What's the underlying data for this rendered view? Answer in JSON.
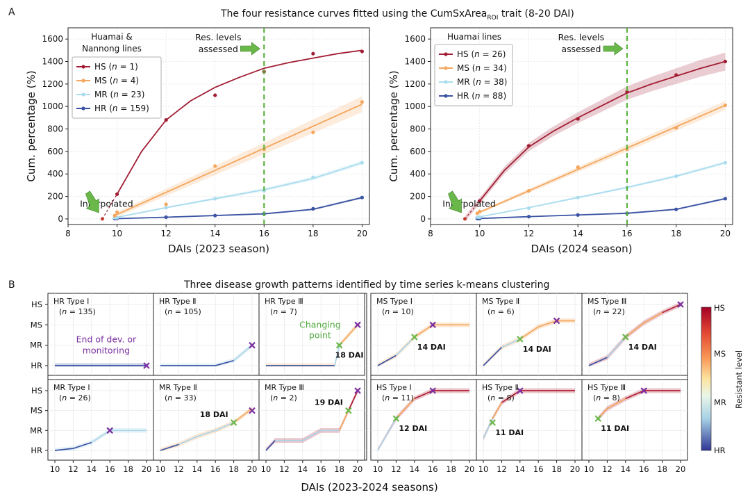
{
  "panel_a": {
    "letter": "A",
    "title": "The four resistance curves fitted using the CumSxArea",
    "title_sub": "ROI",
    "title_tail": " trait (8-20 DAI)",
    "ylabel": "Cum. percentage (%)",
    "annotation_res": "Res. levels",
    "annotation_res2": "assessed",
    "annotation_interp": "Interpolated"
  },
  "panel_b": {
    "letter": "B",
    "title": "Three disease growth patterns identified by time series k-means clustering",
    "xlabel": "DAIs (2023-2024 seasons)",
    "level_labels": [
      "HS",
      "MS",
      "MR",
      "HR"
    ],
    "colorbar_label": "Resistant level",
    "colorbar_ticks": [
      "HS",
      "MS",
      "MR",
      "HR"
    ],
    "end_label_1": "End of dev. or",
    "end_label_2": "monitoring",
    "changing_label_1": "Changing",
    "changing_label_2": "point"
  },
  "colors": {
    "HS": "#a11d33",
    "MS": "#f4a65c",
    "MR": "#a9dcee",
    "HR": "#3a53a4",
    "vline": "#5db33f",
    "arrow": "#6ab84a",
    "end_marker": "#7b2fa0",
    "change_marker": "#6ab84a",
    "end_text": "#7b2fa0",
    "change_text": "#4fa83d"
  },
  "chart_data": [
    {
      "type": "line",
      "title": "The four resistance curves fitted using the CumSxAreaROI trait (8-20 DAI)",
      "xlabel": "DAIs (2023 season)",
      "ylabel": "Cum. percentage (%)",
      "xlim": [
        8,
        20.3
      ],
      "ylim": [
        -50,
        1700
      ],
      "xticks": [
        8,
        10,
        12,
        14,
        16,
        18,
        20
      ],
      "yticks": [
        0,
        200,
        400,
        600,
        800,
        1000,
        1200,
        1400,
        1600
      ],
      "vline_x": 16,
      "legend_title_1": "Huamai  &",
      "legend_title_2": "Nannong lines",
      "series": [
        {
          "name": "HS",
          "n": "1",
          "fit_x": [
            9.4,
            10,
            11,
            12,
            13,
            14,
            15,
            16,
            17,
            18,
            19,
            20
          ],
          "fit_y": [
            0,
            220,
            600,
            880,
            1050,
            1170,
            1260,
            1340,
            1390,
            1430,
            1470,
            1500
          ],
          "points_x": [
            10,
            12,
            14,
            16,
            18,
            20
          ],
          "points_y": [
            220,
            880,
            1100,
            1310,
            1470,
            1490
          ],
          "band": 0
        },
        {
          "name": "MS",
          "n": "4",
          "fit_x": [
            9.9,
            20
          ],
          "fit_y": [
            30,
            1020
          ],
          "points_x": [
            10,
            12,
            14,
            16,
            18,
            20
          ],
          "points_y": [
            60,
            130,
            470,
            620,
            770,
            1040
          ],
          "band": 70
        },
        {
          "name": "MR",
          "n": "23",
          "fit_x": [
            9.9,
            12,
            14,
            16,
            18,
            20
          ],
          "fit_y": [
            10,
            100,
            180,
            260,
            360,
            500
          ],
          "points_x": [
            10,
            12,
            14,
            16,
            18,
            20
          ],
          "points_y": [
            10,
            100,
            180,
            250,
            370,
            500
          ],
          "band": 20
        },
        {
          "name": "HR",
          "n": "159",
          "fit_x": [
            9.9,
            12,
            14,
            16,
            18,
            20
          ],
          "fit_y": [
            2,
            15,
            30,
            45,
            85,
            190
          ],
          "points_x": [
            10,
            12,
            14,
            16,
            18,
            20
          ],
          "points_y": [
            3,
            15,
            30,
            45,
            90,
            190
          ],
          "band": 10
        }
      ]
    },
    {
      "type": "line",
      "xlabel": "DAIs (2024 season)",
      "ylabel": "Cum. percentage (%)",
      "xlim": [
        8,
        20.3
      ],
      "ylim": [
        -50,
        1700
      ],
      "xticks": [
        8,
        10,
        12,
        14,
        16,
        18,
        20
      ],
      "yticks": [
        0,
        200,
        400,
        600,
        800,
        1000,
        1200,
        1400,
        1600
      ],
      "vline_x": 16,
      "legend_title_1": "Huamai  lines",
      "legend_title_2": "",
      "series": [
        {
          "name": "HS",
          "n": "26",
          "fit_x": [
            9.4,
            10,
            11,
            12,
            13,
            14,
            15,
            16,
            17,
            18,
            19,
            20
          ],
          "fit_y": [
            0,
            160,
            430,
            640,
            780,
            900,
            1010,
            1120,
            1200,
            1270,
            1340,
            1400
          ],
          "points_x": [
            10,
            12,
            14,
            16,
            18,
            20
          ],
          "points_y": [
            160,
            650,
            890,
            1130,
            1280,
            1400
          ],
          "band": 80
        },
        {
          "name": "MS",
          "n": "34",
          "fit_x": [
            9.9,
            20
          ],
          "fit_y": [
            50,
            1010
          ],
          "points_x": [
            10,
            12,
            14,
            16,
            18,
            20
          ],
          "points_y": [
            65,
            250,
            460,
            620,
            810,
            1010
          ],
          "band": 40
        },
        {
          "name": "MR",
          "n": "38",
          "fit_x": [
            9.9,
            12,
            14,
            16,
            18,
            20
          ],
          "fit_y": [
            15,
            100,
            190,
            280,
            380,
            500
          ],
          "points_x": [
            10,
            12,
            14,
            16,
            18,
            20
          ],
          "points_y": [
            15,
            95,
            190,
            280,
            380,
            500
          ],
          "band": 15
        },
        {
          "name": "HR",
          "n": "88",
          "fit_x": [
            9.9,
            12,
            14,
            16,
            18,
            20
          ],
          "fit_y": [
            3,
            20,
            35,
            50,
            85,
            180
          ],
          "points_x": [
            10,
            12,
            14,
            16,
            18,
            20
          ],
          "points_y": [
            3,
            20,
            35,
            50,
            85,
            180
          ],
          "band": 10
        }
      ]
    },
    {
      "type": "line",
      "title": "Three disease growth patterns identified by time series k-means clustering",
      "xlabel": "DAIs (2023-2024 seasons)",
      "xticks": [
        10,
        12,
        14,
        16,
        18,
        20
      ],
      "levels": [
        "HR",
        "MR",
        "MS",
        "HS"
      ],
      "clusters": [
        {
          "title": "HR Type Ⅰ",
          "n": "135",
          "x": [
            10,
            20
          ],
          "y": [
            0,
            0
          ],
          "end": [
            20,
            0
          ],
          "change": null,
          "change_label": ""
        },
        {
          "title": "HR Type Ⅱ",
          "n": "105",
          "x": [
            10,
            16,
            18,
            20
          ],
          "y": [
            0,
            0,
            0.25,
            1
          ],
          "end": [
            20,
            1
          ],
          "change": null,
          "change_label": ""
        },
        {
          "title": "HR Type Ⅲ",
          "n": "7",
          "x": [
            10,
            17.5,
            18,
            20
          ],
          "y": [
            0,
            0,
            1,
            2
          ],
          "end": [
            20,
            2
          ],
          "change": [
            18,
            1
          ],
          "change_label": "18 DAI"
        },
        {
          "title": "MS Type Ⅰ",
          "n": "10",
          "x": [
            10,
            12,
            14,
            16,
            20
          ],
          "y": [
            0,
            0.5,
            1.4,
            2,
            2
          ],
          "end": [
            16,
            2
          ],
          "change": [
            14,
            1.4
          ],
          "change_label": "14 DAI"
        },
        {
          "title": "MS Type Ⅱ",
          "n": "6",
          "x": [
            10,
            12,
            14,
            16,
            18,
            20
          ],
          "y": [
            0,
            0.9,
            1.3,
            1.9,
            2.2,
            2.2
          ],
          "end": [
            18,
            2.2
          ],
          "change": [
            14,
            1.3
          ],
          "change_label": "14 DAI"
        },
        {
          "title": "MS Type Ⅲ",
          "n": "22",
          "x": [
            10,
            12,
            14,
            16,
            18,
            20
          ],
          "y": [
            0,
            0.4,
            1.4,
            2.1,
            2.6,
            3
          ],
          "end": [
            20,
            3
          ],
          "change": [
            14,
            1.4
          ],
          "change_label": "14 DAI"
        },
        {
          "title": "MR Type Ⅰ",
          "n": "26",
          "x": [
            10,
            12,
            14,
            16,
            20
          ],
          "y": [
            0,
            0.1,
            0.4,
            1,
            1
          ],
          "end": [
            16,
            1
          ],
          "change": null,
          "change_label": ""
        },
        {
          "title": "MR Type Ⅱ",
          "n": "33",
          "x": [
            10,
            12,
            14,
            16,
            18,
            20
          ],
          "y": [
            0,
            0.3,
            0.7,
            1,
            1.4,
            2.1
          ],
          "end": [
            20,
            2
          ],
          "change": [
            18,
            1.4
          ],
          "change_label": "18 DAI"
        },
        {
          "title": "MR Type Ⅲ",
          "n": "2",
          "x": [
            10,
            11,
            12,
            14,
            16,
            18,
            19,
            20
          ],
          "y": [
            0,
            0.5,
            0.5,
            0.5,
            1,
            1,
            2,
            3
          ],
          "end": [
            20,
            3
          ],
          "change": [
            19,
            2
          ],
          "change_label": "19 DAI"
        },
        {
          "title": "HS Type Ⅰ",
          "n": "11",
          "x": [
            10,
            12,
            14,
            16,
            20
          ],
          "y": [
            0,
            1.6,
            2.6,
            3,
            3
          ],
          "end": [
            16,
            3
          ],
          "change": [
            12,
            1.6
          ],
          "change_label": "12 DAI"
        },
        {
          "title": "HS Type Ⅱ",
          "n": "8",
          "x": [
            10,
            11,
            12,
            14,
            16,
            20
          ],
          "y": [
            0.6,
            1.6,
            2.4,
            3,
            3,
            3
          ],
          "end": [
            14,
            3
          ],
          "change": [
            11,
            1.4
          ],
          "change_label": "11 DAI"
        },
        {
          "title": "HS Type Ⅲ",
          "n": "8",
          "x": [
            11,
            12,
            14,
            16,
            20
          ],
          "y": [
            1.6,
            2.1,
            2.6,
            3,
            3
          ],
          "end": [
            16,
            3
          ],
          "change": [
            11,
            1.6
          ],
          "change_label": "11 DAI"
        }
      ]
    }
  ]
}
